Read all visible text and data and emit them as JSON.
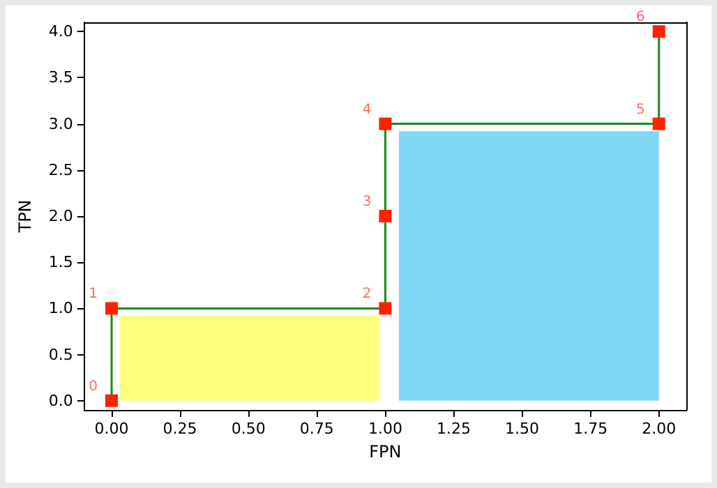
{
  "chart_data": {
    "type": "step",
    "xlabel": "FPN",
    "ylabel": "TPN",
    "xlim": [
      -0.1,
      2.1
    ],
    "ylim": [
      -0.1,
      4.1
    ],
    "xticks": [
      {
        "value": 0,
        "label": "0.00"
      },
      {
        "value": 0.25,
        "label": "0.25"
      },
      {
        "value": 0.5,
        "label": "0.50"
      },
      {
        "value": 0.75,
        "label": "0.75"
      },
      {
        "value": 1,
        "label": "1.00"
      },
      {
        "value": 1.25,
        "label": "1.25"
      },
      {
        "value": 1.5,
        "label": "1.50"
      },
      {
        "value": 1.75,
        "label": "1.75"
      },
      {
        "value": 2,
        "label": "2.00"
      }
    ],
    "yticks": [
      {
        "value": 0,
        "label": "0.0"
      },
      {
        "value": 0.5,
        "label": "0.5"
      },
      {
        "value": 1,
        "label": "1.0"
      },
      {
        "value": 1.5,
        "label": "1.5"
      },
      {
        "value": 2,
        "label": "2.0"
      },
      {
        "value": 2.5,
        "label": "2.5"
      },
      {
        "value": 3,
        "label": "3.0"
      },
      {
        "value": 3.5,
        "label": "3.5"
      },
      {
        "value": 4,
        "label": "4.0"
      }
    ],
    "grid": false,
    "series": [
      {
        "type": "area",
        "color": "#ffff80",
        "x": [
          0.03,
          0.98
        ],
        "values": [
          0.92,
          0.92
        ]
      },
      {
        "type": "area",
        "color": "#80d8f8",
        "x": [
          1.05,
          2.0
        ],
        "values": [
          2.92,
          2.92
        ]
      },
      {
        "color": "#1a8a1a",
        "marker": "square",
        "x": [
          0,
          0,
          1,
          1,
          1,
          2,
          2
        ],
        "values": [
          0,
          1,
          1,
          2,
          3,
          3,
          4
        ]
      }
    ],
    "annotations": [
      {
        "text": "0",
        "x": 0,
        "y": 0
      },
      {
        "text": "1",
        "x": 0,
        "y": 1
      },
      {
        "text": "2",
        "x": 1,
        "y": 1
      },
      {
        "text": "3",
        "x": 1,
        "y": 2
      },
      {
        "text": "4",
        "x": 1,
        "y": 3
      },
      {
        "text": "5",
        "x": 2,
        "y": 3
      },
      {
        "text": "6",
        "x": 2,
        "y": 4
      }
    ]
  }
}
